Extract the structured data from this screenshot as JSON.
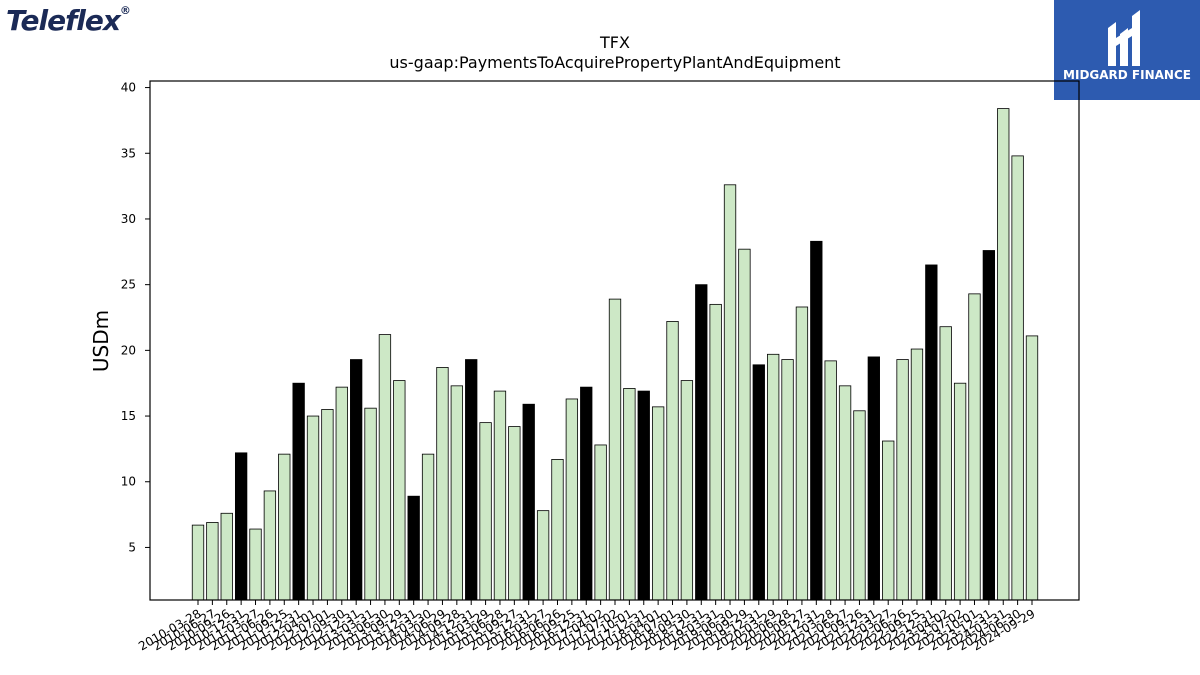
{
  "logos": {
    "teleflex": "Teleflex",
    "midgard": "MIDGARD FINANCE"
  },
  "chart_data": {
    "type": "bar",
    "title": "TFX",
    "subtitle": "us-gaap:PaymentsToAcquirePropertyPlantAndEquipment",
    "xlabel": "",
    "ylabel": "USDm",
    "ylim": [
      1,
      40.5
    ],
    "yticks": [
      5,
      10,
      15,
      20,
      25,
      30,
      35,
      40
    ],
    "grid": false,
    "colors": {
      "quarter": "#cde8c6",
      "annual": "#000000",
      "edge": "#000000"
    },
    "categories": [
      "2010-03-28",
      "2010-06-27",
      "2010-09-26",
      "2010-12-31",
      "2011-03-27",
      "2011-06-26",
      "2011-09-25",
      "2011-12-31",
      "2012-04-01",
      "2012-07-01",
      "2012-09-30",
      "2012-12-31",
      "2013-03-31",
      "2013-06-30",
      "2013-09-29",
      "2013-12-31",
      "2014-03-30",
      "2014-06-29",
      "2014-09-28",
      "2014-12-31",
      "2015-03-29",
      "2015-06-28",
      "2015-09-27",
      "2015-12-31",
      "2016-03-27",
      "2016-06-26",
      "2016-09-25",
      "2016-12-31",
      "2017-04-02",
      "2017-07-02",
      "2017-10-01",
      "2017-12-31",
      "2018-04-01",
      "2018-07-01",
      "2018-09-30",
      "2018-12-31",
      "2019-03-31",
      "2019-06-30",
      "2019-09-29",
      "2019-12-31",
      "2020-03-29",
      "2020-06-28",
      "2020-09-27",
      "2020-12-31",
      "2021-03-28",
      "2021-06-27",
      "2021-09-26",
      "2021-12-31",
      "2022-03-27",
      "2022-06-26",
      "2022-09-25",
      "2022-12-31",
      "2023-04-02",
      "2023-07-02",
      "2023-10-01",
      "2023-12-31",
      "2024-03-31",
      "2024-06-30",
      "2024-09-29"
    ],
    "values": [
      6.7,
      6.9,
      7.6,
      12.2,
      6.4,
      9.3,
      12.1,
      17.5,
      15.0,
      15.5,
      17.2,
      19.3,
      15.6,
      21.2,
      17.7,
      8.9,
      12.1,
      18.7,
      17.3,
      19.3,
      14.5,
      16.9,
      14.2,
      15.9,
      7.8,
      11.7,
      16.3,
      17.2,
      12.8,
      23.9,
      17.1,
      16.9,
      15.7,
      22.2,
      17.7,
      25.0,
      23.5,
      32.6,
      27.7,
      18.9,
      19.7,
      19.3,
      23.3,
      28.3,
      19.2,
      17.3,
      15.4,
      19.5,
      13.1,
      19.3,
      20.1,
      26.5,
      21.8,
      17.5,
      24.3,
      27.6,
      38.4,
      34.8,
      21.1
    ],
    "annual": [
      false,
      false,
      false,
      true,
      false,
      false,
      false,
      true,
      false,
      false,
      false,
      true,
      false,
      false,
      false,
      true,
      false,
      false,
      false,
      true,
      false,
      false,
      false,
      true,
      false,
      false,
      false,
      true,
      false,
      false,
      false,
      true,
      false,
      false,
      false,
      true,
      false,
      false,
      false,
      true,
      false,
      false,
      false,
      true,
      false,
      false,
      false,
      true,
      false,
      false,
      false,
      true,
      false,
      false,
      false,
      true,
      false,
      false,
      false
    ]
  }
}
